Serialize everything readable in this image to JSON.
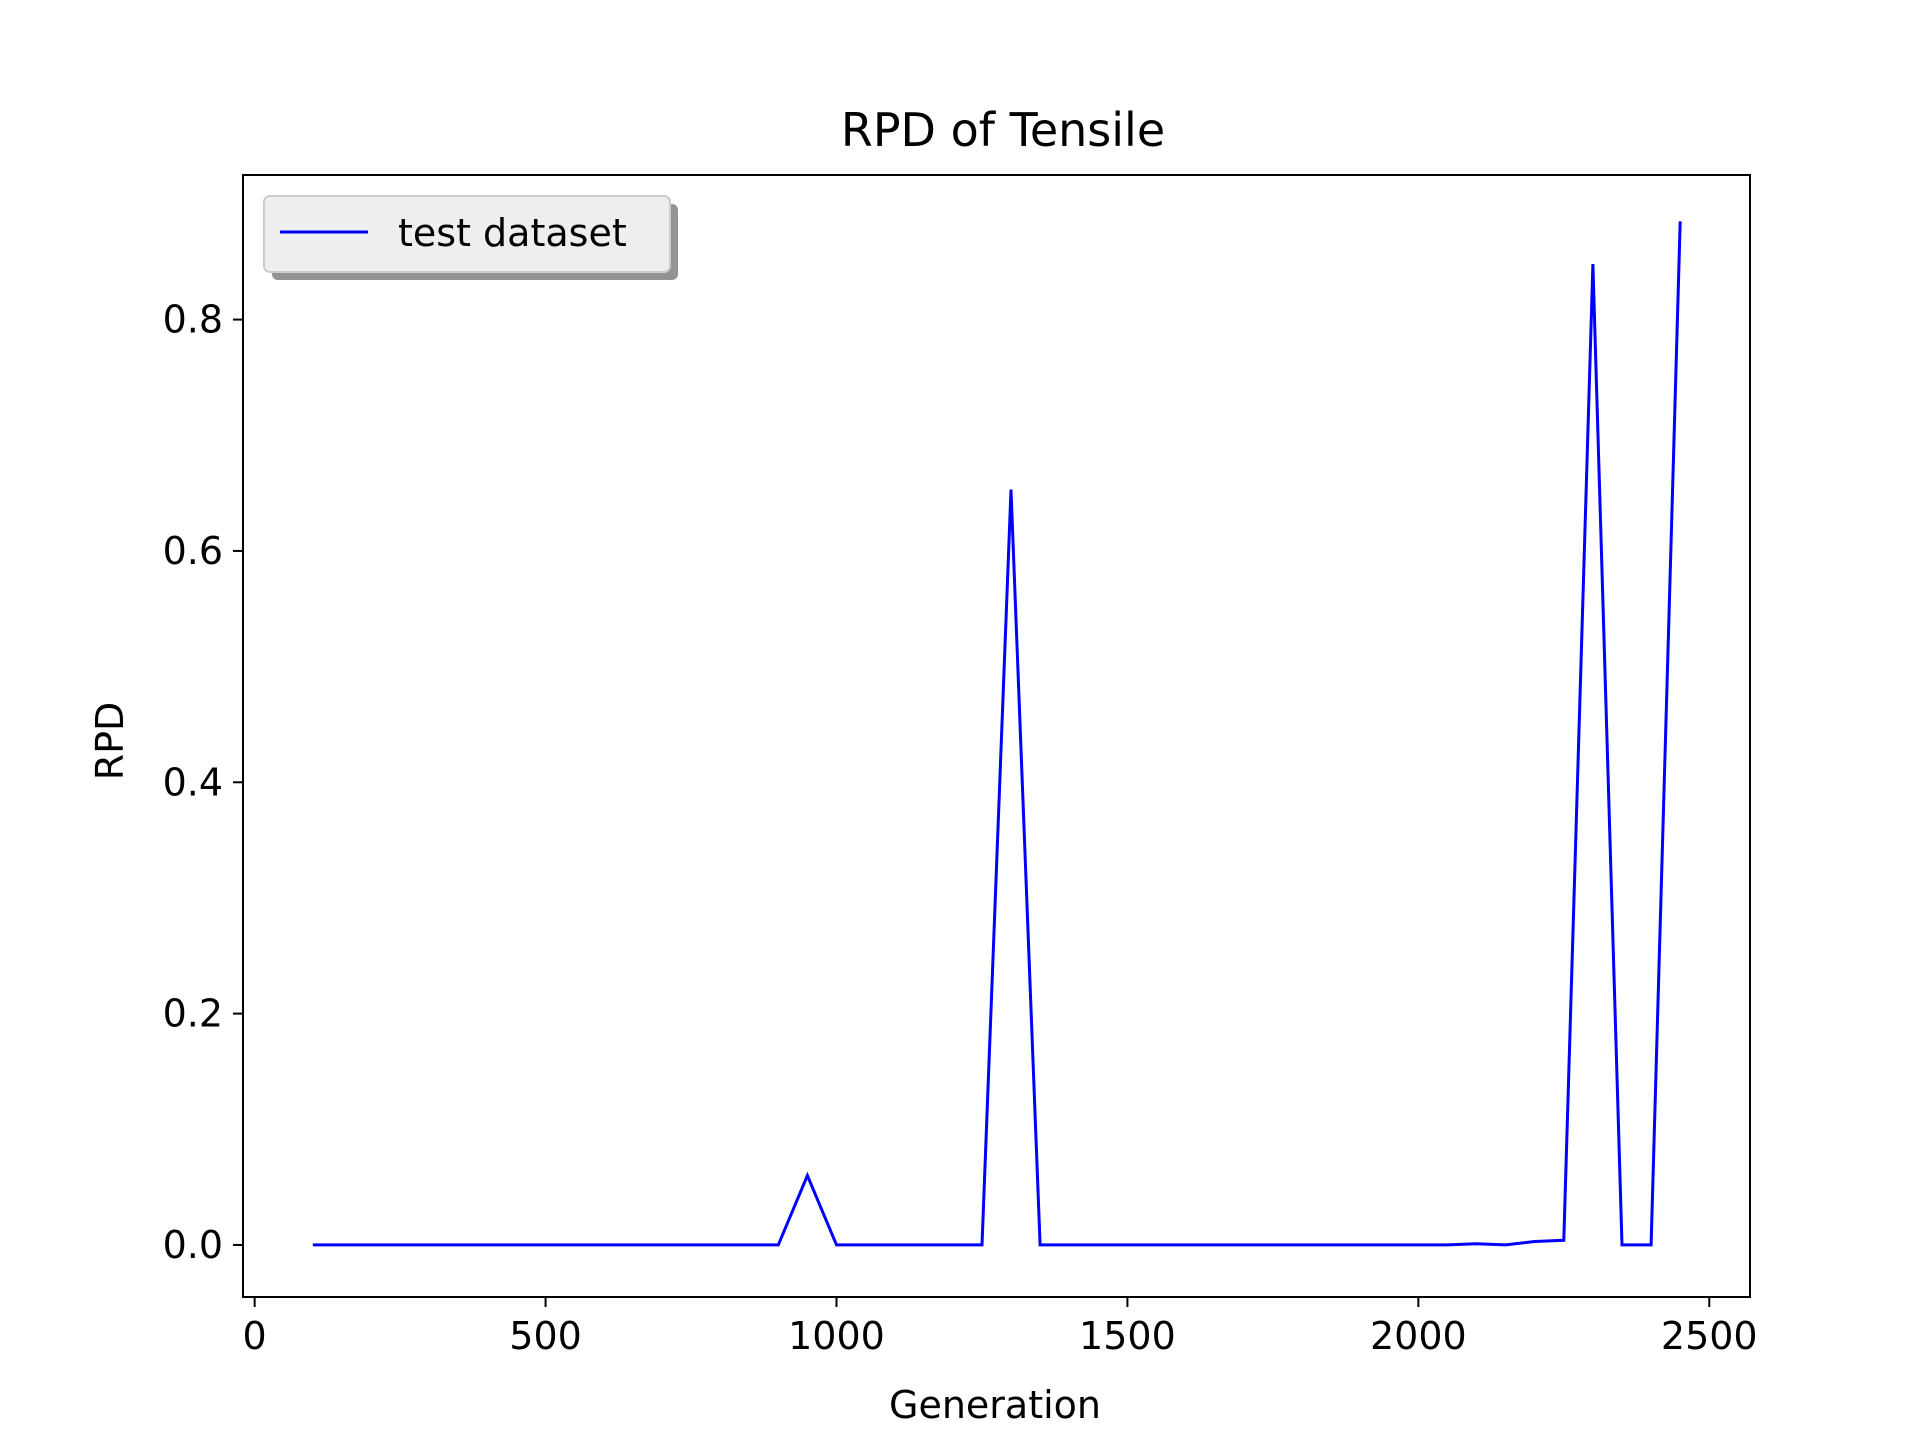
{
  "chart_data": {
    "type": "line",
    "title": "RPD of Tensile",
    "xlabel": "Generation",
    "ylabel": "RPD",
    "xlim": [
      -20,
      2570
    ],
    "ylim": [
      -0.045,
      0.925
    ],
    "xticks": [
      0,
      500,
      1000,
      1500,
      2000,
      2500
    ],
    "xtick_labels": [
      "0",
      "500",
      "1000",
      "1500",
      "2000",
      "2500"
    ],
    "yticks": [
      0.0,
      0.2,
      0.4,
      0.6,
      0.8
    ],
    "ytick_labels": [
      "0.0",
      "0.2",
      "0.4",
      "0.6",
      "0.8"
    ],
    "grid": false,
    "legend_position": "top-left",
    "series": [
      {
        "name": "test dataset",
        "color": "#0000ff",
        "x": [
          100,
          150,
          200,
          250,
          300,
          350,
          400,
          450,
          500,
          550,
          600,
          650,
          700,
          750,
          800,
          850,
          900,
          950,
          1000,
          1050,
          1100,
          1150,
          1200,
          1250,
          1300,
          1350,
          1400,
          1450,
          1500,
          1550,
          1600,
          1650,
          1700,
          1750,
          1800,
          1850,
          1900,
          1950,
          2000,
          2050,
          2100,
          2150,
          2200,
          2250,
          2300,
          2350,
          2400,
          2450
        ],
        "y": [
          0.0,
          0.0,
          0.0,
          0.0,
          0.0,
          0.0,
          0.0,
          0.0,
          0.0,
          0.0,
          0.0,
          0.0,
          0.0,
          0.0,
          0.0,
          0.0,
          0.0,
          0.06,
          0.0,
          0.0,
          0.0,
          0.0,
          0.0,
          0.0,
          0.653,
          0.0,
          0.0,
          0.0,
          0.0,
          0.0,
          0.0,
          0.0,
          0.0,
          0.0,
          0.0,
          0.0,
          0.0,
          0.0,
          0.0,
          0.0,
          0.001,
          0.0,
          0.003,
          0.004,
          0.848,
          0.0,
          0.0,
          0.885
        ]
      }
    ]
  }
}
